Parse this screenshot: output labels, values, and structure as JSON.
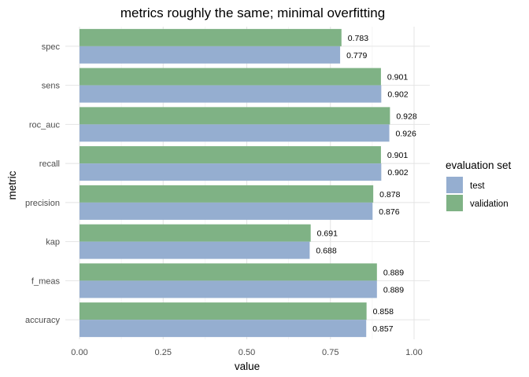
{
  "chart_data": {
    "type": "bar",
    "orientation": "horizontal",
    "title": "metrics roughly the same; minimal overfitting",
    "xlabel": "value",
    "ylabel": "metric",
    "xlim": [
      0,
      1.0
    ],
    "xticks": [
      "0.00",
      "0.25",
      "0.50",
      "0.75",
      "1.00"
    ],
    "grid": true,
    "legend_position": "right",
    "legend_title": "evaluation set",
    "categories": [
      "accuracy",
      "f_meas",
      "kap",
      "precision",
      "recall",
      "roc_auc",
      "sens",
      "spec"
    ],
    "series": [
      {
        "name": "test",
        "color": "#95aed0",
        "values": [
          0.857,
          0.889,
          0.688,
          0.876,
          0.902,
          0.926,
          0.902,
          0.779
        ],
        "labels": [
          "0.857",
          "0.889",
          "0.688",
          "0.876",
          "0.902",
          "0.926",
          "0.902",
          "0.779"
        ]
      },
      {
        "name": "validation",
        "color": "#7fb285",
        "values": [
          0.858,
          0.889,
          0.691,
          0.878,
          0.901,
          0.928,
          0.901,
          0.783
        ],
        "labels": [
          "0.858",
          "0.889",
          "0.691",
          "0.878",
          "0.901",
          "0.928",
          "0.901",
          "0.783"
        ]
      }
    ]
  }
}
